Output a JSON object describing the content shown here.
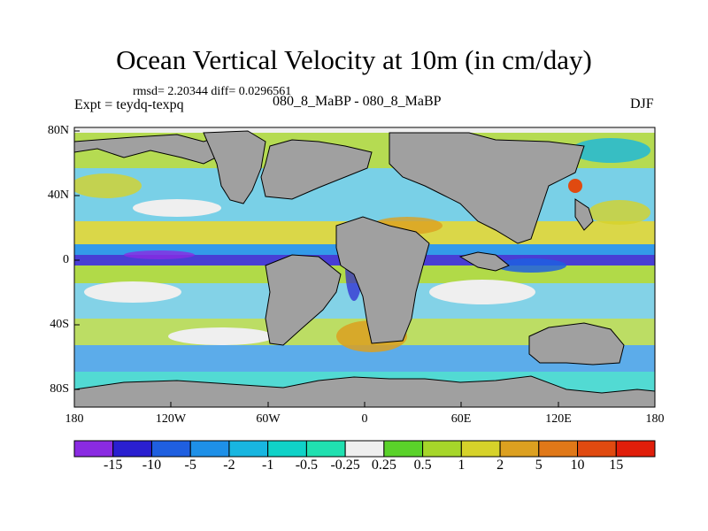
{
  "title": "Ocean Vertical Velocity at 10m (in cm/day)",
  "stats": "rmsd= 2.20344 diff= 0.0296561",
  "experiment": "Expt = teydq-texpq",
  "subtitle": "080_8_MaBP - 080_8_MaBP",
  "season": "DJF",
  "lat_labels": [
    "80N",
    "40N",
    "0",
    "40S",
    "80S"
  ],
  "lon_labels": [
    "180",
    "120W",
    "60W",
    "0",
    "60E",
    "120E",
    "180"
  ],
  "colorbar": {
    "labels": [
      "-15",
      "-10",
      "-5",
      "-2",
      "-1",
      "-0.5",
      "-0.25",
      "0.25",
      "0.5",
      "1",
      "2",
      "5",
      "10",
      "15"
    ],
    "colors": [
      "#8a2be2",
      "#2a1fd0",
      "#1f5fe0",
      "#1e90e8",
      "#18b6e0",
      "#10d2c8",
      "#20e0b0",
      "#efefef",
      "#5ad22a",
      "#a6d62a",
      "#d6d22a",
      "#dca020",
      "#e07818",
      "#e04a10",
      "#e01e0a"
    ]
  },
  "land_color": "#a0a0a0"
}
